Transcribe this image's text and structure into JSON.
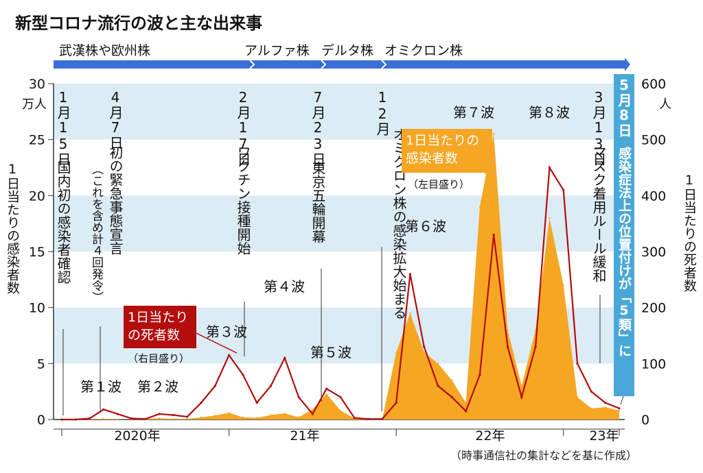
{
  "title": "新型コロナ流行の波と主な出来事",
  "source_note": "（時事通信社の集計などを基に作成）",
  "variants": [
    {
      "label": "武漢株や欧州株"
    },
    {
      "label": "アルファ株"
    },
    {
      "label": "デルタ株"
    },
    {
      "label": "オミクロン株"
    }
  ],
  "y_left": {
    "unit": "万人",
    "ticks": [
      "0",
      "5",
      "10",
      "15",
      "20",
      "25",
      "30"
    ],
    "label": "1日当たりの感染者数",
    "max": 30
  },
  "y_right": {
    "unit": "人",
    "ticks": [
      "0",
      "100",
      "200",
      "300",
      "400",
      "500",
      "600"
    ],
    "label": "1日当たりの死者数",
    "max": 600
  },
  "x_ticks": [
    "2020年",
    "21年",
    "22年",
    "23年"
  ],
  "legend_cases": {
    "label": "1日当たりの感染者数",
    "note": "（左目盛り）"
  },
  "legend_deaths": {
    "label": "1日当たりの死者数",
    "note": "（右目盛り）"
  },
  "events": [
    {
      "date": "1月15日",
      "text": "国内初の感染者確認",
      "sub": ""
    },
    {
      "date": "4月7日",
      "text": "初の緊急事態宣言",
      "sub": "（これを含め計４回発令）"
    },
    {
      "date": "2月17日",
      "text": "ワクチン接種開始",
      "sub": ""
    },
    {
      "date": "7月23日",
      "text": "東京五輪開幕",
      "sub": ""
    },
    {
      "date": "12月",
      "text": "オミクロン株の感染拡大始まる",
      "sub": ""
    },
    {
      "date": "3月13日",
      "text": "マスク着用ルール緩和",
      "sub": ""
    },
    {
      "date": "5月8日",
      "text": "感染症法上の位置付けが「5類」に",
      "sub": ""
    }
  ],
  "waves": [
    "第１波",
    "第２波",
    "第３波",
    "第４波",
    "第５波",
    "第６波",
    "第７波",
    "第８波"
  ],
  "colors": {
    "cases": "#f5a623",
    "deaths": "#b30d0d",
    "band": "#dcecf5",
    "variant_bar": "#3a6fd8",
    "event_box": "#4aa8d8"
  },
  "chart_data": {
    "type": "area",
    "title": "新型コロナ流行の波と主な出来事",
    "x": [
      "2020-01",
      "2020-02",
      "2020-03",
      "2020-04",
      "2020-05",
      "2020-06",
      "2020-07",
      "2020-08",
      "2020-09",
      "2020-10",
      "2020-11",
      "2020-12",
      "2021-01",
      "2021-02",
      "2021-03",
      "2021-04",
      "2021-05",
      "2021-06",
      "2021-07",
      "2021-08",
      "2021-09",
      "2021-10",
      "2021-11",
      "2021-12",
      "2022-01",
      "2022-02",
      "2022-03",
      "2022-04",
      "2022-05",
      "2022-06",
      "2022-07",
      "2022-08",
      "2022-09",
      "2022-10",
      "2022-11",
      "2022-12",
      "2023-01",
      "2023-02",
      "2023-03",
      "2023-04",
      "2023-05"
    ],
    "series": [
      {
        "name": "1日当たりの感染者数",
        "axis": "left",
        "values": [
          0,
          0,
          0.02,
          0.05,
          0.02,
          0,
          0.06,
          0.1,
          0.05,
          0.06,
          0.2,
          0.35,
          0.6,
          0.2,
          0.15,
          0.4,
          0.55,
          0.2,
          0.9,
          2.3,
          0.8,
          0.1,
          0.02,
          0.05,
          6,
          9.5,
          6,
          5,
          3.5,
          1.5,
          19,
          25.5,
          8,
          3,
          8,
          18,
          12,
          2,
          1,
          1.1,
          0.8
        ]
      },
      {
        "name": "1日当たりの死者数",
        "axis": "right",
        "values": [
          0,
          0,
          2,
          18,
          10,
          2,
          1,
          10,
          8,
          5,
          30,
          60,
          115,
          80,
          30,
          60,
          110,
          40,
          10,
          55,
          40,
          3,
          1,
          1,
          30,
          260,
          130,
          60,
          40,
          15,
          80,
          330,
          130,
          40,
          130,
          450,
          410,
          100,
          50,
          30,
          20
        ]
      }
    ],
    "y_left_lim": [
      0,
      30
    ],
    "y_right_lim": [
      0,
      600
    ]
  }
}
